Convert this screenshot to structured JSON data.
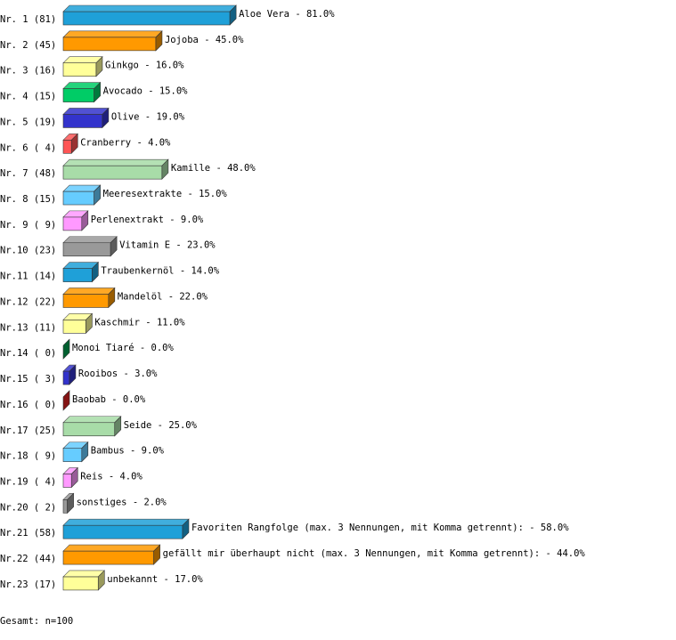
{
  "chart_data": {
    "type": "bar",
    "categories": [
      "Nr. 1 (81)",
      "Nr. 2 (45)",
      "Nr. 3 (16)",
      "Nr. 4 (15)",
      "Nr. 5 (19)",
      "Nr. 6 ( 4)",
      "Nr. 7 (48)",
      "Nr. 8 (15)",
      "Nr. 9 ( 9)",
      "Nr.10 (23)",
      "Nr.11 (14)",
      "Nr.12 (22)",
      "Nr.13 (11)",
      "Nr.14 ( 0)",
      "Nr.15 ( 3)",
      "Nr.16 ( 0)",
      "Nr.17 (25)",
      "Nr.18 ( 9)",
      "Nr.19 ( 4)",
      "Nr.20 ( 2)",
      "Nr.21 (58)",
      "Nr.22 (44)",
      "Nr.23 (17)"
    ],
    "values": [
      81,
      45,
      16,
      15,
      19,
      4,
      48,
      15,
      9,
      23,
      14,
      22,
      11,
      0,
      3,
      0,
      25,
      9,
      4,
      2,
      58,
      44,
      17
    ],
    "value_labels": [
      "Aloe Vera -  81.0%",
      "Jojoba -  45.0%",
      "Ginkgo -  16.0%",
      "Avocado -  15.0%",
      "Olive -  19.0%",
      "Cranberry -   4.0%",
      "Kamille -  48.0%",
      "Meeresextrakte -  15.0%",
      "Perlenextrakt -   9.0%",
      "Vitamin E -  23.0%",
      "Traubenkernöl -  14.0%",
      "Mandelöl -  22.0%",
      "Kaschmir -  11.0%",
      "Monoi Tiaré -   0.0%",
      "Rooibos -   3.0%",
      "Baobab -   0.0%",
      "Seide -  25.0%",
      "Bambus -   9.0%",
      "Reis -   4.0%",
      "sonstiges -   2.0%",
      "Favoriten Rangfolge (max. 3 Nennungen, mit Komma getrennt): -  58.0%",
      "gefällt mir überhaupt nicht (max. 3 Nennungen, mit Komma getrennt): -  44.0%",
      "unbekannt -  17.0%"
    ],
    "colors": [
      "#1fa0d8",
      "#ff9900",
      "#ffff99",
      "#00cc66",
      "#3333cc",
      "#ff5555",
      "#a8dca8",
      "#66ccff",
      "#ff99ff",
      "#999999",
      "#1fa0d8",
      "#ff9900",
      "#ffff99",
      "#00a050",
      "#3333cc",
      "#dd2222",
      "#a8dca8",
      "#66ccff",
      "#ff99ff",
      "#999999",
      "#1fa0d8",
      "#ff9900",
      "#ffff99"
    ],
    "xlim": [
      0,
      100
    ],
    "note": "Gesamt: n=100"
  }
}
